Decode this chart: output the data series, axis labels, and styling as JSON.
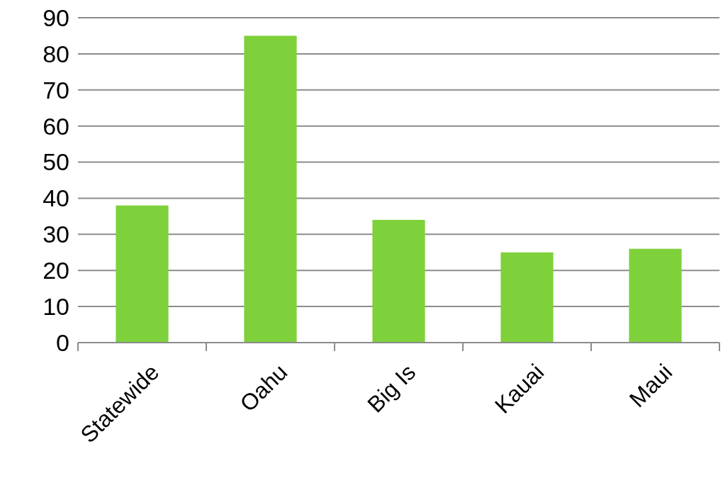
{
  "chart_data": {
    "type": "bar",
    "categories": [
      "Statewide",
      "Oahu",
      "Big Is",
      "Kauai",
      "Maui"
    ],
    "values": [
      38,
      85,
      34,
      25,
      26
    ],
    "color": "#7fd13b",
    "ylim": [
      0,
      90
    ],
    "yticks": [
      0,
      10,
      20,
      30,
      40,
      50,
      60,
      70,
      80,
      90
    ],
    "grid": "y"
  }
}
